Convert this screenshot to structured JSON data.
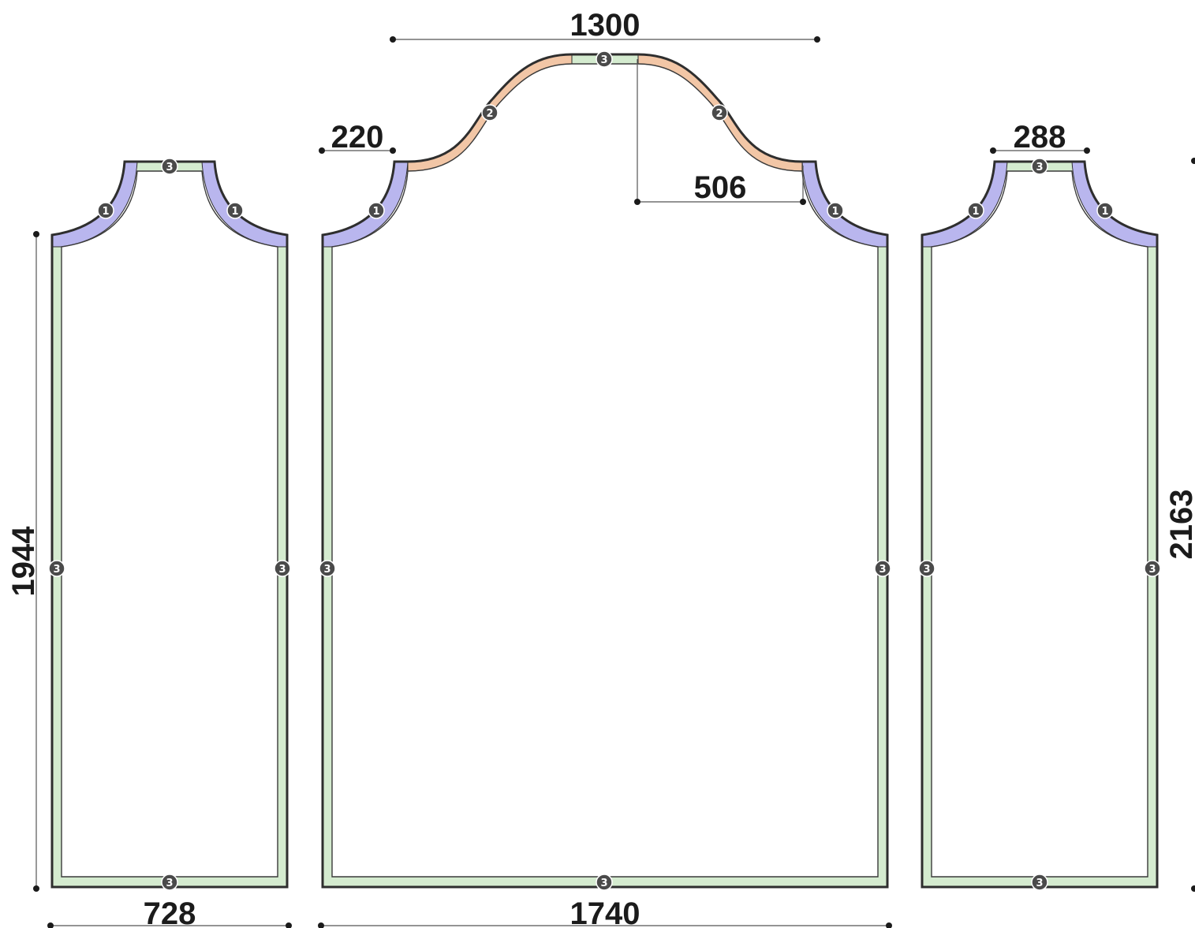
{
  "colors": {
    "profile_1": "#b9b6ee",
    "profile_2": "#f2c6a6",
    "profile_3": "#d4ebcf",
    "outline": "#2e2e2e",
    "badge_fill": "#4a4a4a",
    "dimension_text": "#1b1b1b"
  },
  "dimensions": {
    "left_height": "1944",
    "left_width": "728",
    "center_top_width": "1300",
    "center_shoulder": "220",
    "center_arch_offset": "506",
    "center_width": "1740",
    "right_top_width": "288",
    "right_height": "2163"
  },
  "badges": {
    "profile_1": "1",
    "profile_2": "2",
    "profile_3": "3"
  }
}
